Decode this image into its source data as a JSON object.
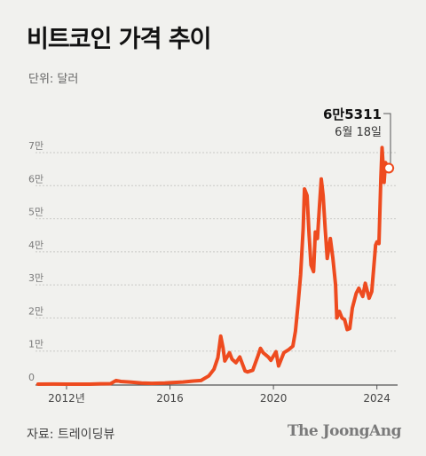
{
  "header": {
    "title": "비트코인 가격 추이",
    "unit": "단위: 달러"
  },
  "footer": {
    "source": "자료: 트레이딩뷰",
    "brand": "The JoongAng"
  },
  "colors": {
    "line": "#ee4b1f",
    "grid": "#c9c9c6",
    "axis": "#555555",
    "background": "#f1f1ee"
  },
  "chart_data": {
    "type": "line",
    "title": "비트코인 가격 추이",
    "ylabel": "단위: 달러",
    "ylim": [
      0,
      75000
    ],
    "xlim": [
      2010.8,
      2024.8
    ],
    "grid": true,
    "y_ticks": [
      {
        "value": 0,
        "label": "0"
      },
      {
        "value": 10000,
        "label": "1만"
      },
      {
        "value": 20000,
        "label": "2만"
      },
      {
        "value": 30000,
        "label": "3만"
      },
      {
        "value": 40000,
        "label": "4만"
      },
      {
        "value": 50000,
        "label": "5만"
      },
      {
        "value": 60000,
        "label": "6만"
      },
      {
        "value": 70000,
        "label": "7만"
      }
    ],
    "x_ticks": [
      {
        "value": 2012,
        "label": "2012년"
      },
      {
        "value": 2016,
        "label": "2016"
      },
      {
        "value": 2020,
        "label": "2020"
      },
      {
        "value": 2024,
        "label": "2024"
      }
    ],
    "series": [
      {
        "points": [
          [
            2010.9,
            0
          ],
          [
            2011.5,
            15
          ],
          [
            2012.0,
            5
          ],
          [
            2012.5,
            7
          ],
          [
            2012.9,
            13
          ],
          [
            2013.3,
            100
          ],
          [
            2013.7,
            130
          ],
          [
            2013.92,
            1100
          ],
          [
            2014.1,
            800
          ],
          [
            2014.5,
            600
          ],
          [
            2014.9,
            350
          ],
          [
            2015.3,
            240
          ],
          [
            2015.8,
            330
          ],
          [
            2016.0,
            430
          ],
          [
            2016.5,
            650
          ],
          [
            2016.9,
            950
          ],
          [
            2017.2,
            1100
          ],
          [
            2017.5,
            2500
          ],
          [
            2017.7,
            4500
          ],
          [
            2017.85,
            8000
          ],
          [
            2017.96,
            14500
          ],
          [
            2018.05,
            11000
          ],
          [
            2018.12,
            7000
          ],
          [
            2018.3,
            9500
          ],
          [
            2018.4,
            7500
          ],
          [
            2018.55,
            6500
          ],
          [
            2018.7,
            8200
          ],
          [
            2018.9,
            4000
          ],
          [
            2019.0,
            3700
          ],
          [
            2019.2,
            4200
          ],
          [
            2019.4,
            8500
          ],
          [
            2019.5,
            10800
          ],
          [
            2019.6,
            9500
          ],
          [
            2019.8,
            8200
          ],
          [
            2019.9,
            7200
          ],
          [
            2020.1,
            9800
          ],
          [
            2020.2,
            5500
          ],
          [
            2020.4,
            9500
          ],
          [
            2020.6,
            10500
          ],
          [
            2020.75,
            11500
          ],
          [
            2020.85,
            16000
          ],
          [
            2020.95,
            24000
          ],
          [
            2021.05,
            33000
          ],
          [
            2021.15,
            47000
          ],
          [
            2021.2,
            59000
          ],
          [
            2021.3,
            57000
          ],
          [
            2021.38,
            45000
          ],
          [
            2021.45,
            36000
          ],
          [
            2021.55,
            34000
          ],
          [
            2021.62,
            46000
          ],
          [
            2021.7,
            44000
          ],
          [
            2021.78,
            54000
          ],
          [
            2021.85,
            62000
          ],
          [
            2021.92,
            57000
          ],
          [
            2022.0,
            47000
          ],
          [
            2022.08,
            38000
          ],
          [
            2022.2,
            44000
          ],
          [
            2022.3,
            38000
          ],
          [
            2022.4,
            30000
          ],
          [
            2022.45,
            20000
          ],
          [
            2022.55,
            22000
          ],
          [
            2022.65,
            20000
          ],
          [
            2022.75,
            19500
          ],
          [
            2022.85,
            16500
          ],
          [
            2022.95,
            16800
          ],
          [
            2023.05,
            23000
          ],
          [
            2023.2,
            27500
          ],
          [
            2023.3,
            29000
          ],
          [
            2023.45,
            26500
          ],
          [
            2023.55,
            30500
          ],
          [
            2023.7,
            26000
          ],
          [
            2023.8,
            28000
          ],
          [
            2023.87,
            34500
          ],
          [
            2023.95,
            42000
          ],
          [
            2024.0,
            43000
          ],
          [
            2024.08,
            42500
          ],
          [
            2024.15,
            62000
          ],
          [
            2024.2,
            71500
          ],
          [
            2024.28,
            61000
          ],
          [
            2024.33,
            67000
          ],
          [
            2024.4,
            66000
          ],
          [
            2024.46,
            65311
          ]
        ]
      }
    ],
    "annotation": {
      "x": 2024.46,
      "y": 65311,
      "value_label": "6만5311",
      "date_label": "6월 18일"
    }
  }
}
